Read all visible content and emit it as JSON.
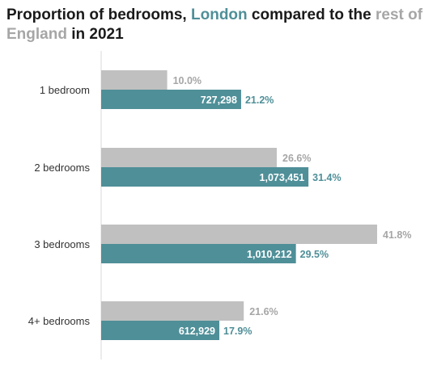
{
  "title": {
    "part1": "Proportion of bedrooms, ",
    "london": "London",
    "part2": " compared to the ",
    "rest": "rest of England",
    "part3": " in 2021"
  },
  "colors": {
    "london": "#4f8f98",
    "rest": "#c0c0c0",
    "axis": "#d9d9d9"
  },
  "chart_data": {
    "type": "bar",
    "orientation": "horizontal",
    "title": "Proportion of bedrooms, London compared to the rest of England in 2021",
    "categories": [
      "1 bedroom",
      "2 bedrooms",
      "3 bedrooms",
      "4+ bedrooms"
    ],
    "series": [
      {
        "name": "rest of England",
        "values": [
          10.0,
          26.6,
          41.8,
          21.6
        ],
        "labels": [
          "10.0%",
          "26.6%",
          "41.8%",
          "21.6%"
        ]
      },
      {
        "name": "London",
        "values": [
          21.2,
          31.4,
          29.5,
          17.9
        ],
        "counts": [
          "727,298",
          "1,073,451",
          "1,010,212",
          "612,929"
        ],
        "labels": [
          "21.2%",
          "31.4%",
          "29.5%",
          "17.9%"
        ]
      }
    ],
    "xlim": [
      0,
      42
    ]
  }
}
